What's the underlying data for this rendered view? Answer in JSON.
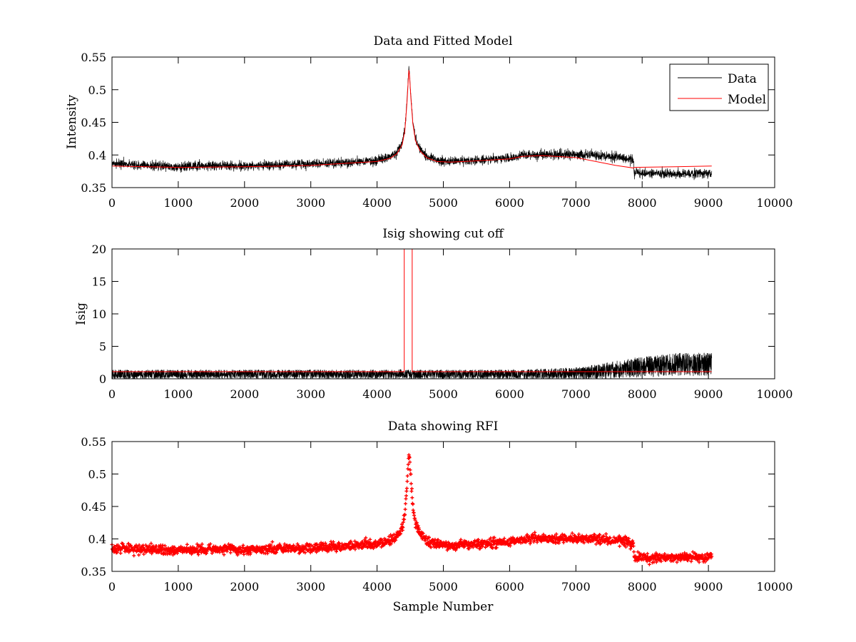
{
  "colors": {
    "data": "#000000",
    "model": "#ff0000",
    "rfi": "#ff0000",
    "axes": "#000000"
  },
  "chart_data": [
    {
      "type": "line",
      "title": "Data and Fitted Model",
      "xlabel": "",
      "ylabel": "Intensity",
      "xlim": [
        0,
        10000
      ],
      "ylim": [
        0.35,
        0.55
      ],
      "xticks": [
        0,
        1000,
        2000,
        3000,
        4000,
        5000,
        6000,
        7000,
        8000,
        9000,
        10000
      ],
      "xticklabels": [
        "0",
        "1000",
        "2000",
        "3000",
        "4000",
        "5000",
        "6000",
        "7000",
        "8000",
        "9000",
        "10000"
      ],
      "yticks": [
        0.35,
        0.4,
        0.45,
        0.5,
        0.55
      ],
      "yticklabels": [
        "0.35",
        "0.4",
        "0.45",
        "0.5",
        "0.55"
      ],
      "grid": false,
      "legend": "top-right",
      "series": [
        {
          "name": "Data",
          "color": "#000000",
          "noise": 0.006,
          "x": [
            0,
            500,
            1000,
            1500,
            2000,
            2500,
            3000,
            3500,
            4000,
            4200,
            4300,
            4380,
            4420,
            4450,
            4470,
            4480,
            4490,
            4510,
            4540,
            4580,
            4650,
            4750,
            4900,
            5100,
            5500,
            6000,
            6200,
            6500,
            7000,
            7300,
            7600,
            7870,
            7880,
            8000,
            8500,
            9000,
            9050
          ],
          "y": [
            0.386,
            0.384,
            0.382,
            0.384,
            0.383,
            0.385,
            0.386,
            0.388,
            0.392,
            0.397,
            0.404,
            0.418,
            0.44,
            0.48,
            0.515,
            0.533,
            0.525,
            0.49,
            0.45,
            0.425,
            0.408,
            0.398,
            0.392,
            0.39,
            0.392,
            0.395,
            0.4,
            0.401,
            0.4,
            0.4,
            0.397,
            0.393,
            0.372,
            0.372,
            0.371,
            0.372,
            0.372
          ]
        },
        {
          "name": "Model",
          "color": "#ff0000",
          "x": [
            0,
            1000,
            2000,
            3000,
            4000,
            4200,
            4300,
            4380,
            4420,
            4450,
            4470,
            4480,
            4490,
            4510,
            4540,
            4580,
            4650,
            4750,
            4900,
            5100,
            5500,
            6000,
            6200,
            6500,
            7000,
            7300,
            7600,
            7870,
            7880,
            8500,
            9050
          ],
          "y": [
            0.383,
            0.381,
            0.382,
            0.384,
            0.39,
            0.395,
            0.402,
            0.416,
            0.438,
            0.478,
            0.513,
            0.53,
            0.522,
            0.488,
            0.448,
            0.422,
            0.406,
            0.396,
            0.39,
            0.389,
            0.391,
            0.394,
            0.398,
            0.399,
            0.396,
            0.39,
            0.384,
            0.38,
            0.381,
            0.382,
            0.383
          ]
        }
      ]
    },
    {
      "type": "line",
      "title": "Isig showing cut off",
      "xlabel": "",
      "ylabel": "Isig",
      "xlim": [
        0,
        10000
      ],
      "ylim": [
        0,
        20
      ],
      "xticks": [
        0,
        1000,
        2000,
        3000,
        4000,
        5000,
        6000,
        7000,
        8000,
        9000,
        10000
      ],
      "xticklabels": [
        "0",
        "1000",
        "2000",
        "3000",
        "4000",
        "5000",
        "6000",
        "7000",
        "8000",
        "9000",
        "10000"
      ],
      "yticks": [
        0,
        5,
        10,
        15,
        20
      ],
      "yticklabels": [
        "0",
        "5",
        "10",
        "15",
        "20"
      ],
      "grid": false,
      "series": [
        {
          "name": "Isig",
          "color": "#000000",
          "x": [
            0,
            2000,
            4000,
            6000,
            7000,
            7500,
            8000,
            8500,
            9050
          ],
          "y": [
            0.6,
            0.6,
            0.6,
            0.6,
            0.7,
            1.1,
            1.6,
            1.9,
            2.0
          ],
          "noise_amplitude": [
            0.7,
            0.7,
            0.7,
            0.7,
            0.9,
            1.3,
            1.6,
            1.8,
            1.8
          ]
        },
        {
          "name": "Cut off",
          "color": "#ff0000",
          "x": [
            0,
            4410,
            4410,
            4530,
            4530,
            7000,
            7500,
            8000,
            9050
          ],
          "y": [
            1.1,
            1.1,
            20,
            20,
            1.1,
            1.1,
            1.1,
            1.1,
            1.1
          ]
        }
      ]
    },
    {
      "type": "scatter",
      "title": "Data showing RFI",
      "xlabel": "Sample Number",
      "ylabel": "",
      "xlim": [
        0,
        10000
      ],
      "ylim": [
        0.35,
        0.55
      ],
      "xticks": [
        0,
        1000,
        2000,
        3000,
        4000,
        5000,
        6000,
        7000,
        8000,
        9000,
        10000
      ],
      "xticklabels": [
        "0",
        "1000",
        "2000",
        "3000",
        "4000",
        "5000",
        "6000",
        "7000",
        "8000",
        "9000",
        "10000"
      ],
      "yticks": [
        0.35,
        0.4,
        0.45,
        0.5,
        0.55
      ],
      "yticklabels": [
        "0.35",
        "0.4",
        "0.45",
        "0.5",
        "0.55"
      ],
      "grid": false,
      "marker": "+",
      "series": [
        {
          "name": "RFI",
          "color": "#ff0000",
          "noise": 0.006,
          "x": [
            0,
            500,
            1000,
            1500,
            2000,
            2500,
            3000,
            3500,
            4000,
            4200,
            4300,
            4380,
            4420,
            4450,
            4470,
            4480,
            4490,
            4510,
            4540,
            4580,
            4650,
            4750,
            4900,
            5100,
            5500,
            6000,
            6200,
            6500,
            7000,
            7300,
            7600,
            7870,
            7880,
            8000,
            8500,
            9000,
            9050
          ],
          "y": [
            0.386,
            0.384,
            0.382,
            0.384,
            0.383,
            0.385,
            0.386,
            0.388,
            0.392,
            0.397,
            0.404,
            0.418,
            0.44,
            0.48,
            0.515,
            0.533,
            0.525,
            0.49,
            0.45,
            0.425,
            0.408,
            0.398,
            0.392,
            0.39,
            0.392,
            0.395,
            0.4,
            0.401,
            0.4,
            0.4,
            0.397,
            0.393,
            0.372,
            0.372,
            0.371,
            0.372,
            0.372
          ]
        }
      ]
    }
  ]
}
